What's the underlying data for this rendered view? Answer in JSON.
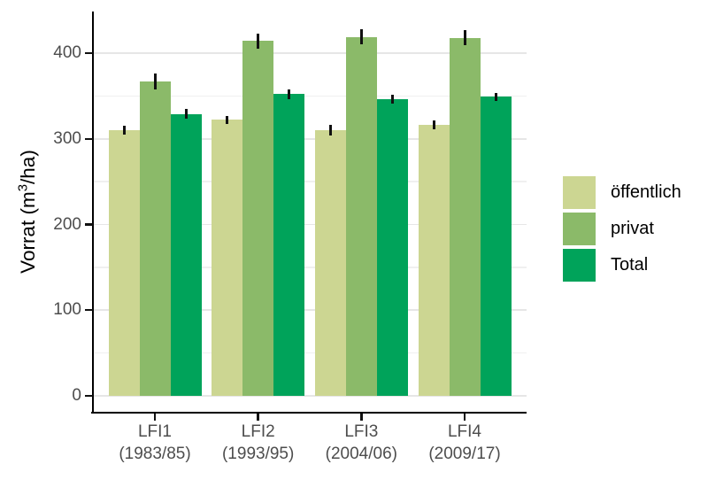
{
  "y_axis": {
    "title_pre": "Vorrat (m",
    "title_sup": "3",
    "title_post": "/ha)"
  },
  "chart_data": {
    "type": "bar",
    "title": "",
    "xlabel": "",
    "ylabel": "Vorrat (m3/ha)",
    "ylim": [
      0,
      448
    ],
    "y_major_ticks": [
      0,
      100,
      200,
      300,
      400
    ],
    "y_minor_ticks": [
      50,
      150,
      250,
      350
    ],
    "grid": true,
    "legend_position": "right",
    "categories": [
      {
        "line1": "LFI1",
        "line2": "(1983/85)"
      },
      {
        "line1": "LFI2",
        "line2": "(1993/95)"
      },
      {
        "line1": "LFI3",
        "line2": "(2004/06)"
      },
      {
        "line1": "LFI4",
        "line2": "(2009/17)"
      }
    ],
    "series": [
      {
        "name": "öffentlich",
        "color": "#ccd692",
        "values": [
          310,
          322,
          310,
          316
        ],
        "errors": [
          5,
          5,
          6,
          5
        ]
      },
      {
        "name": "privat",
        "color": "#8bba69",
        "values": [
          367,
          414,
          419,
          418
        ],
        "errors": [
          9,
          9,
          9,
          9
        ]
      },
      {
        "name": "Total",
        "color": "#00a35a",
        "values": [
          329,
          352,
          346,
          349
        ],
        "errors": [
          6,
          6,
          5,
          5
        ]
      }
    ]
  }
}
